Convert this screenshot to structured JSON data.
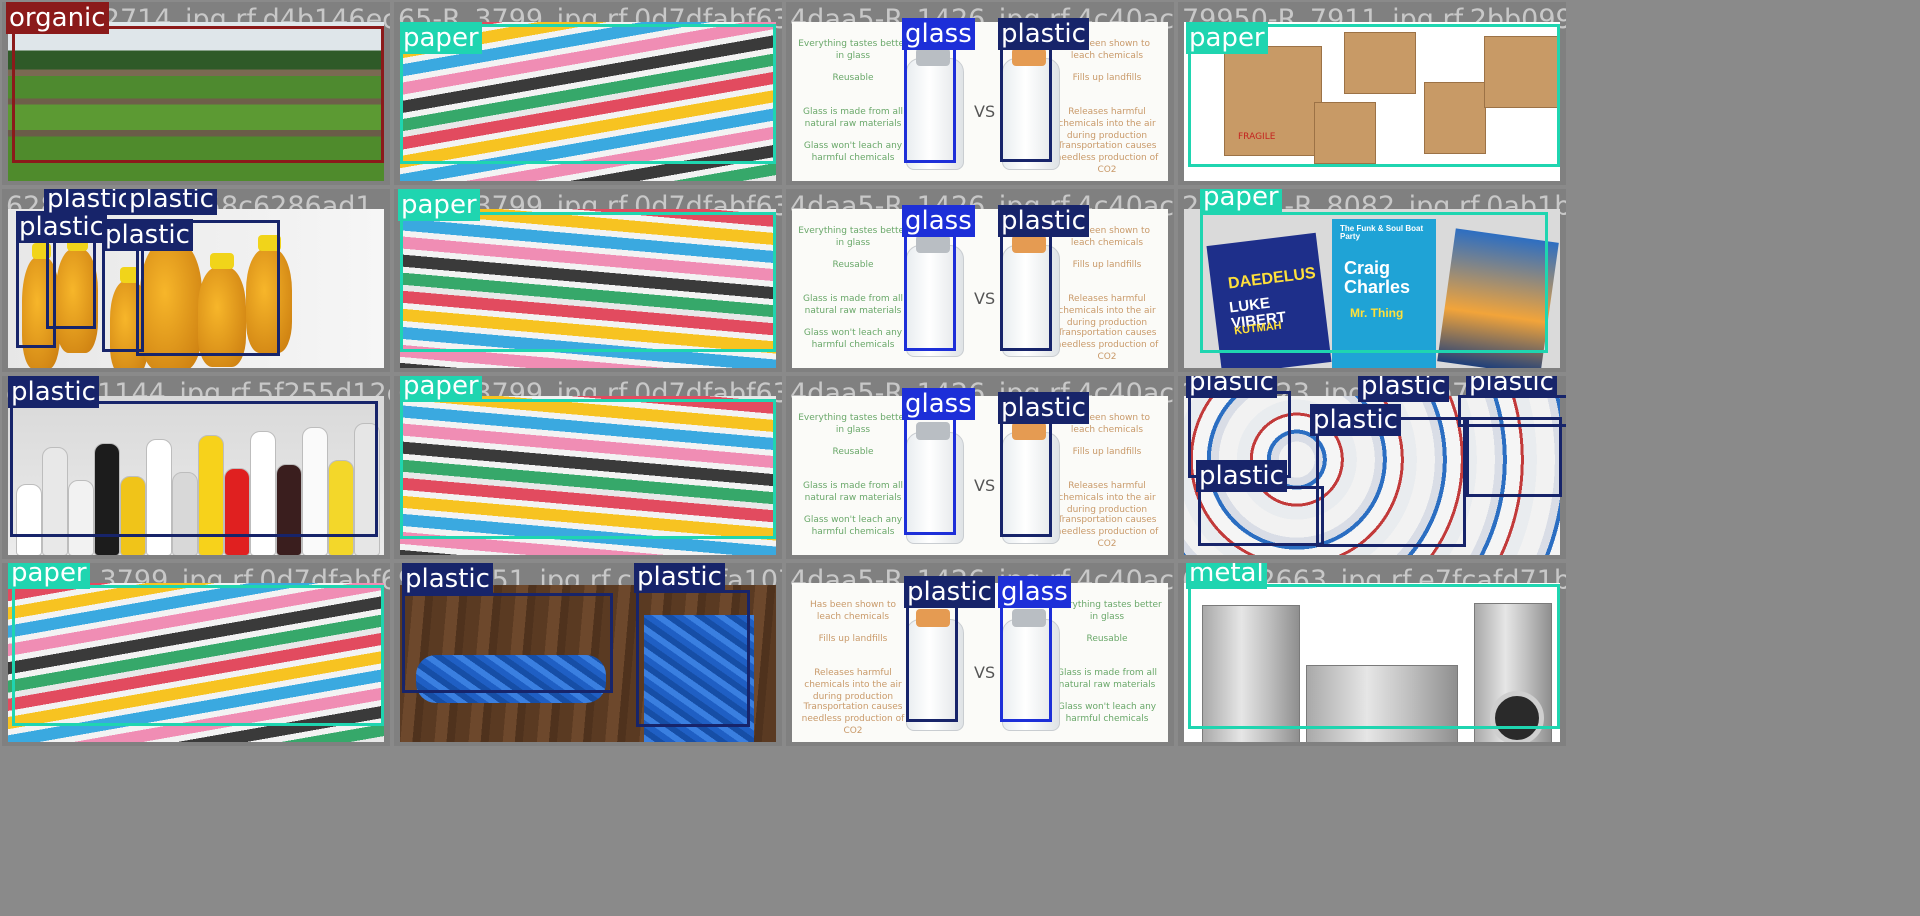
{
  "colors": {
    "organic": "#8b1a1a",
    "paper": "#1fd5b0",
    "glass": "#1d2fd8",
    "plastic": "#17246a",
    "metal": "#1fd5b0",
    "background": "#808080"
  },
  "tiles": [
    {
      "filename": "65-O_12714_jpg.rf.d4b146ec7536b6f6",
      "labels": [
        "organic"
      ]
    },
    {
      "filename": "65-R_3799_jpg.rf.0d7dfabf63e6fd167",
      "labels": [
        "paper"
      ]
    },
    {
      "filename": "4daa5-R_1426_jpg.rf.4c40aceeb68179",
      "labels": [
        "glass",
        "plastic"
      ]
    },
    {
      "filename": "79950-R_7911_jpg.rf.2bb099718",
      "labels": [
        "paper"
      ]
    },
    {
      "filename": "628-R_jpg.rf.1f58c6286ad1",
      "labels": [
        "plastic",
        "plastic",
        "plastic",
        "plastic"
      ]
    },
    {
      "filename": "65-R_3799_jpg.rf.0d7dfabf63e6fd167",
      "labels": [
        "paper"
      ]
    },
    {
      "filename": "4daa5-R_1426_jpg.rf.4c40aceeb68179",
      "labels": [
        "glass",
        "plastic"
      ]
    },
    {
      "filename": "2d5a51-R_8082_jpg.rf.0ab1bf2f5b2",
      "labels": [
        "paper"
      ]
    },
    {
      "filename": "cbb-R_1144_jpg.rf.5f255d12dbc",
      "labels": [
        "plastic"
      ]
    },
    {
      "filename": "65-R_3799_jpg.rf.0d7dfabf63e6fd167",
      "labels": [
        "paper"
      ]
    },
    {
      "filename": "4daa5-R_1426_jpg.rf.4c40aceeb68179",
      "labels": [
        "glass",
        "plastic"
      ]
    },
    {
      "filename": "23-R_423_jpg.rf.31e73",
      "labels": [
        "plastic",
        "plastic",
        "plastic",
        "plastic",
        "plastic"
      ]
    },
    {
      "filename": "365-R_3799_jpg.rf.0d7dfabf63e6",
      "labels": [
        "paper"
      ]
    },
    {
      "filename": "99-R_551_jpg.rf.cb39d2fa1072",
      "labels": [
        "plastic",
        "plastic"
      ]
    },
    {
      "filename": "4daa5-R_1426_jpg.rf.4c40aceeb6815",
      "labels": [
        "plastic",
        "glass"
      ]
    },
    {
      "filename": "68-R_2663_jpg.rf.e7fcafd71bc",
      "labels": [
        "metal"
      ]
    }
  ],
  "infographic": {
    "left_points": [
      "Everything tastes better in glass",
      "Reusable",
      "Glass is made from all natural raw materials",
      "Glass won't leach any harmful chemicals"
    ],
    "right_points": [
      "Has been shown to leach chemicals",
      "Fills up landfills",
      "Releases harmful chemicals into the air during production",
      "Transportation causes needless production of CO2"
    ],
    "vs": "VS"
  },
  "posters": {
    "p1_title": "DAEDELUS",
    "p1_sub": "LUKE VIBERT",
    "p1_extra": "KUTMAH",
    "p2_title": "Craig Charles",
    "p2_sub": "Mr. Thing",
    "p2_top": "The Funk & Soul Boat Party"
  },
  "carton_text": "FRAGILE"
}
